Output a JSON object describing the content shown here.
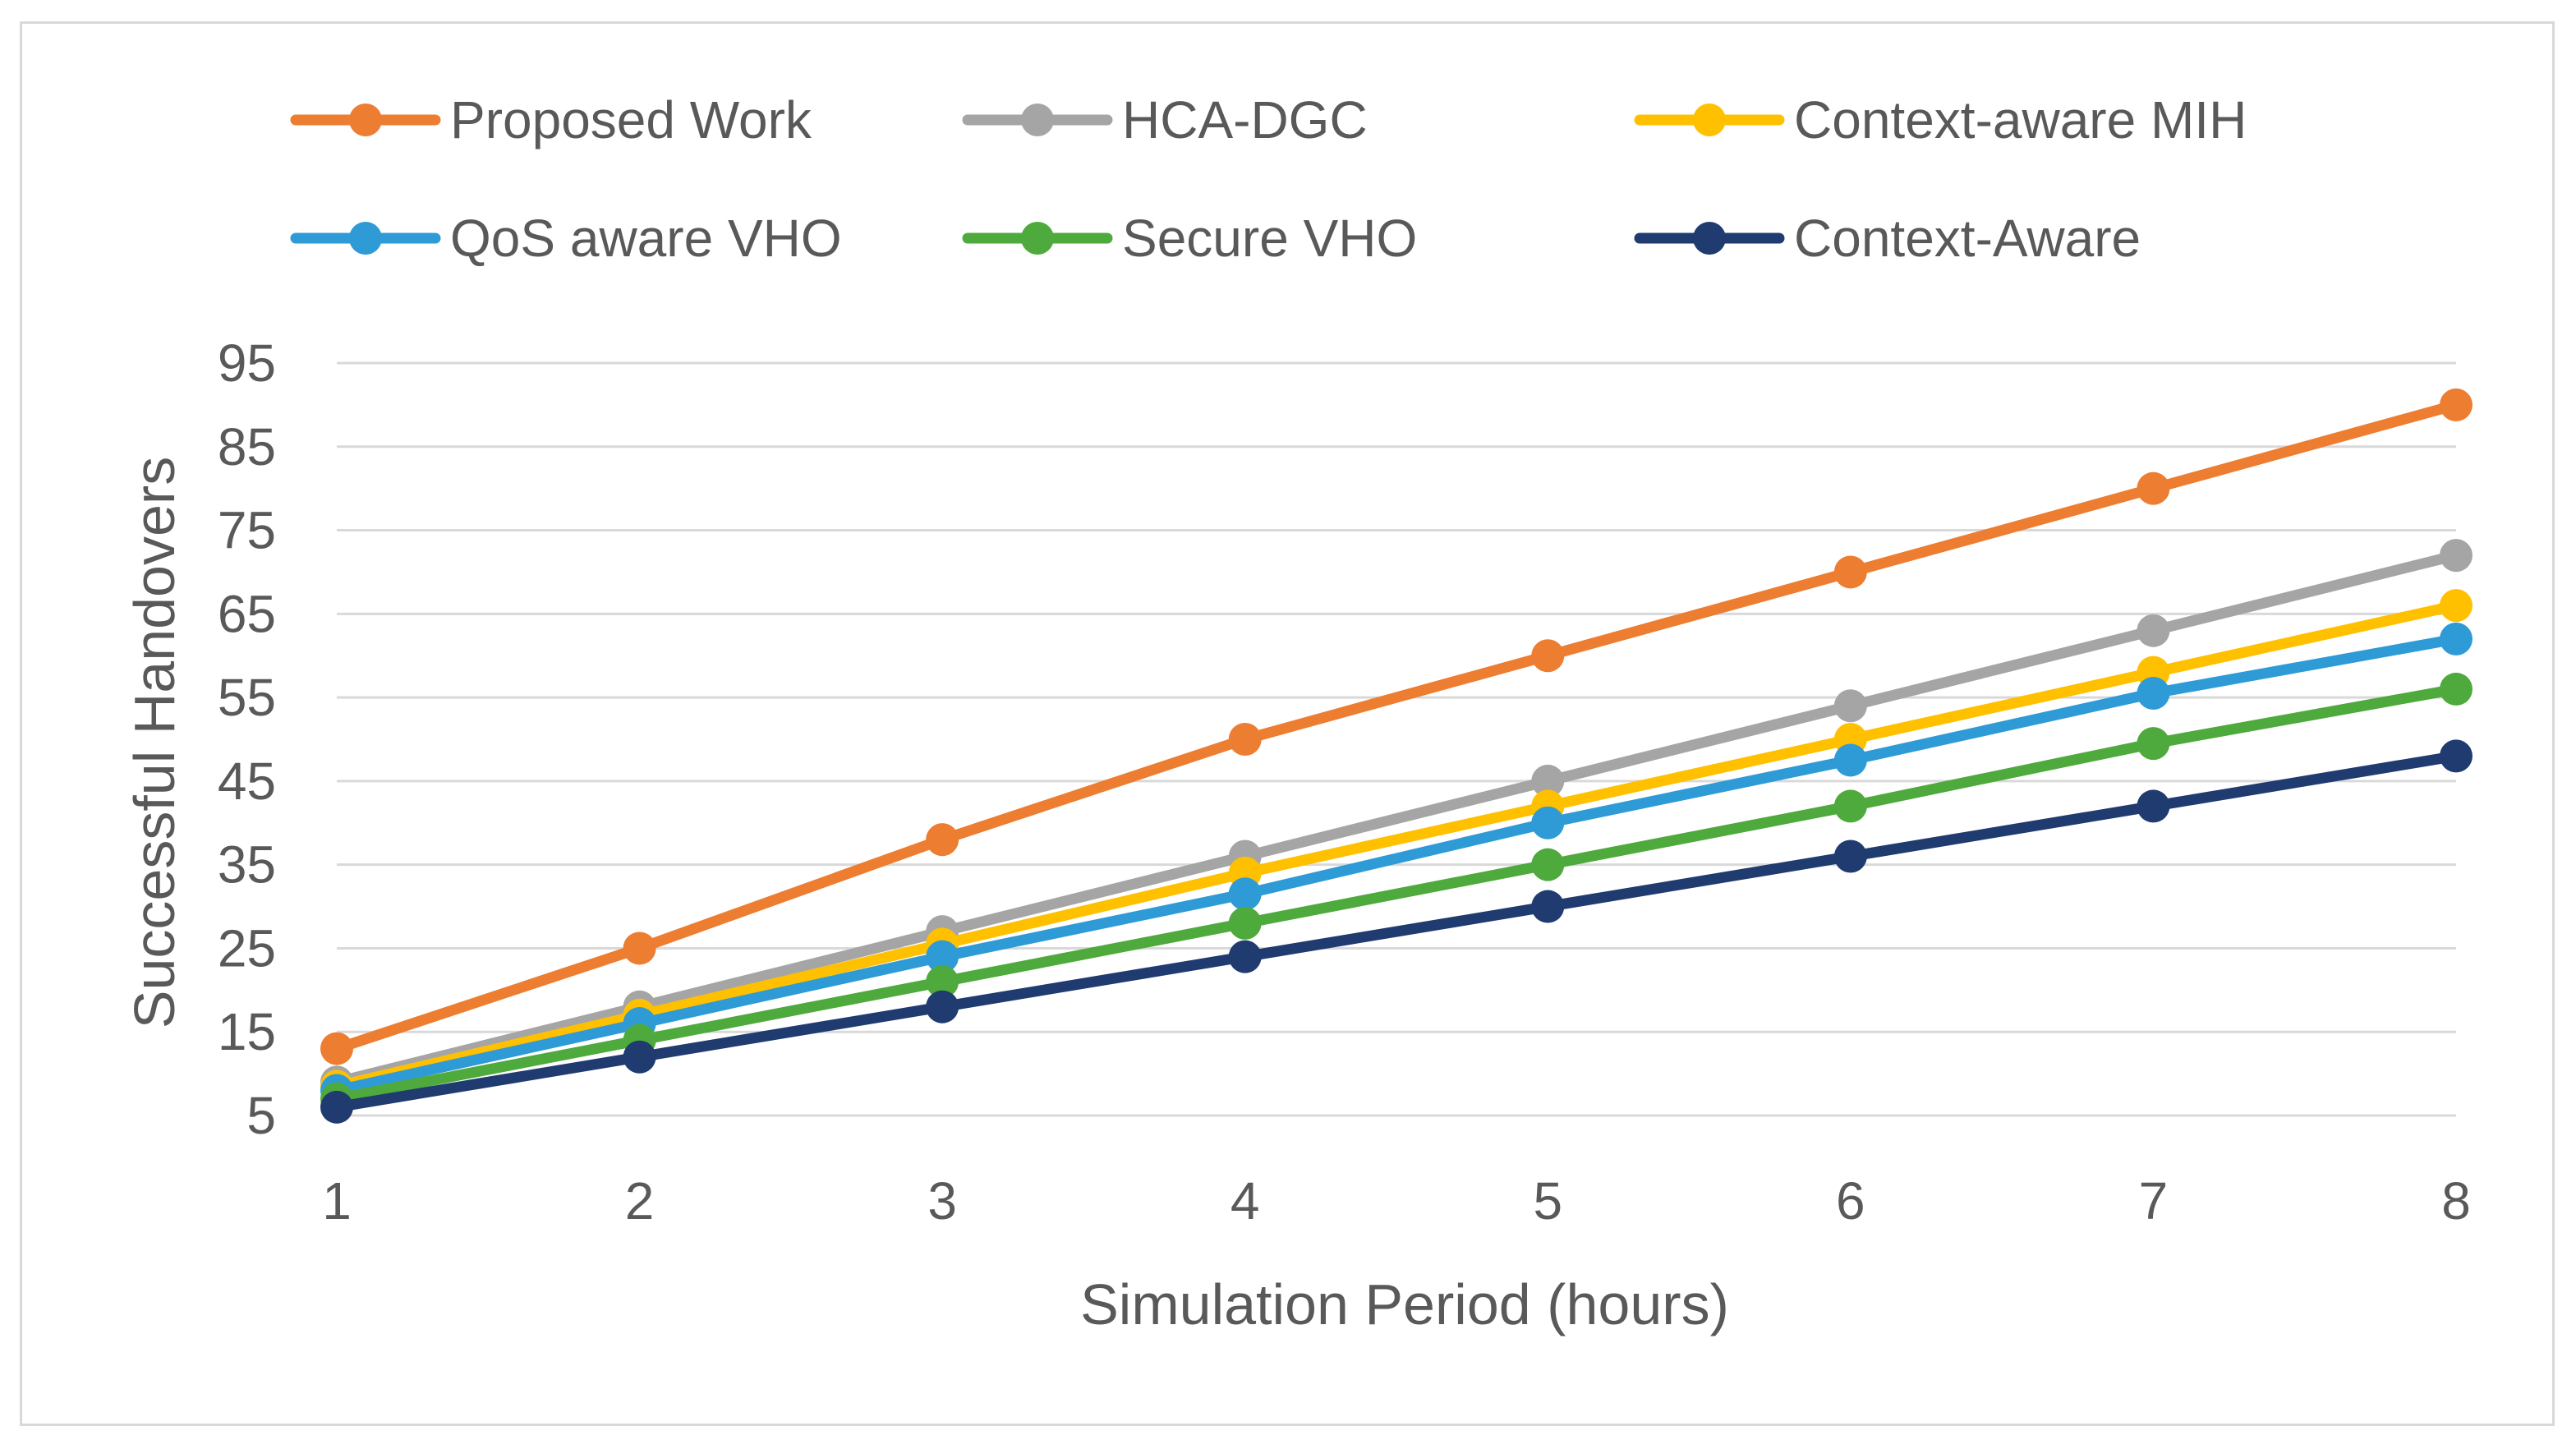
{
  "chart_data": {
    "type": "line",
    "title": "",
    "xlabel": "Simulation Period (hours)",
    "ylabel": "Successful Handovers",
    "x": [
      1,
      2,
      3,
      4,
      5,
      6,
      7,
      8
    ],
    "x_tick_labels": [
      "1",
      "2",
      "3",
      "4",
      "5",
      "6",
      "7",
      "8"
    ],
    "y_ticks": [
      5,
      15,
      25,
      35,
      45,
      55,
      65,
      75,
      85,
      95
    ],
    "y_tick_labels": [
      "5",
      "15",
      "25",
      "35",
      "45",
      "55",
      "65",
      "75",
      "85",
      "95"
    ],
    "ylim": [
      5,
      95
    ],
    "grid": true,
    "legend_position": "top",
    "series": [
      {
        "name": "Proposed Work",
        "color": "#ED7D31",
        "values": [
          13,
          25,
          38,
          50,
          60,
          70,
          80,
          90
        ]
      },
      {
        "name": "HCA-DGC",
        "color": "#A5A5A5",
        "values": [
          9,
          18,
          27,
          36,
          45,
          54,
          63,
          72
        ]
      },
      {
        "name": "Context-aware MIH",
        "color": "#FFC000",
        "values": [
          8.5,
          17,
          25.5,
          34,
          42,
          50,
          58,
          66
        ]
      },
      {
        "name": "QoS aware VHO",
        "color": "#2E9BD6",
        "values": [
          8,
          16,
          24,
          31.5,
          40,
          47.5,
          55.5,
          62
        ]
      },
      {
        "name": "Secure VHO",
        "color": "#4EAA3C",
        "values": [
          7,
          14,
          21,
          28,
          35,
          42,
          49.5,
          56
        ]
      },
      {
        "name": "Context-Aware",
        "color": "#1F3B6F",
        "values": [
          6,
          12,
          18,
          24,
          30,
          36,
          42,
          48
        ]
      }
    ]
  }
}
